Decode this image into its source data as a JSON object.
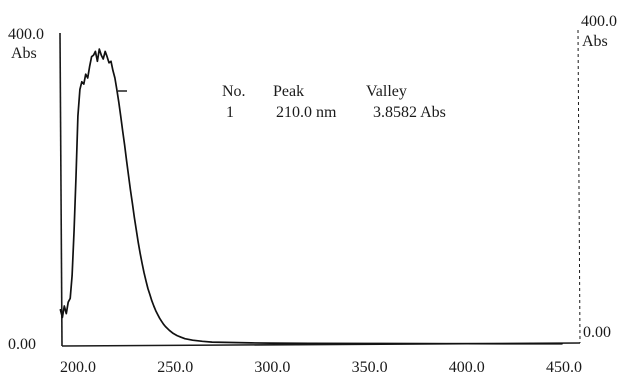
{
  "chart_data": {
    "type": "line",
    "title": "",
    "xlabel": "",
    "ylabel": "",
    "xlim": [
      190,
      455
    ],
    "ylim": [
      0,
      400
    ],
    "x_ticks": [
      "200.0",
      "250.0",
      "300.0",
      "350.0",
      "400.0",
      "450.0"
    ],
    "x_tick_values": [
      200,
      250,
      300,
      350,
      400,
      450
    ],
    "y_axis_left": {
      "top_label": "400.0",
      "unit_label": "Abs",
      "bottom_label": "0.00"
    },
    "y_axis_right": {
      "top_label": "400.0",
      "unit_label": "Abs",
      "bottom_label": "0.00"
    },
    "grid": false,
    "series": [
      {
        "x": [
          192,
          193,
          194,
          195,
          196,
          197,
          198,
          199,
          200,
          201,
          202,
          203,
          204,
          205,
          206,
          207,
          208,
          209,
          210,
          211,
          212,
          213,
          214,
          215,
          216,
          217,
          218,
          219,
          220,
          221,
          222,
          223,
          224,
          225,
          226,
          227,
          228,
          229,
          230,
          231,
          232,
          233,
          234,
          235,
          236,
          237,
          238,
          239,
          240,
          241,
          242,
          243,
          244,
          245,
          246,
          248,
          250,
          252,
          254,
          256,
          258,
          260,
          265,
          270,
          280,
          290,
          300,
          320,
          350,
          380,
          400,
          420,
          450
        ],
        "values": [
          45,
          35,
          50,
          40,
          55,
          60,
          90,
          150,
          220,
          300,
          335,
          345,
          342,
          355,
          350,
          365,
          378,
          380,
          385,
          372,
          388,
          380,
          375,
          385,
          378,
          370,
          372,
          360,
          350,
          335,
          318,
          300,
          280,
          262,
          242,
          222,
          203,
          185,
          167,
          150,
          134,
          119,
          106,
          94,
          83,
          73,
          65,
          57,
          50,
          44,
          39,
          34,
          30,
          26,
          23,
          18,
          14,
          11,
          9,
          7,
          6,
          5,
          3.5,
          2.5,
          2,
          1.5,
          1.2,
          0.8,
          0.6,
          0.5,
          0.4,
          0.3,
          0.2
        ]
      }
    ]
  },
  "peak_table": {
    "headers": [
      "No.",
      "Peak",
      "Valley"
    ],
    "rows": [
      {
        "no": "1",
        "peak": "210.0 nm",
        "valley": "3.8582 Abs"
      }
    ]
  }
}
